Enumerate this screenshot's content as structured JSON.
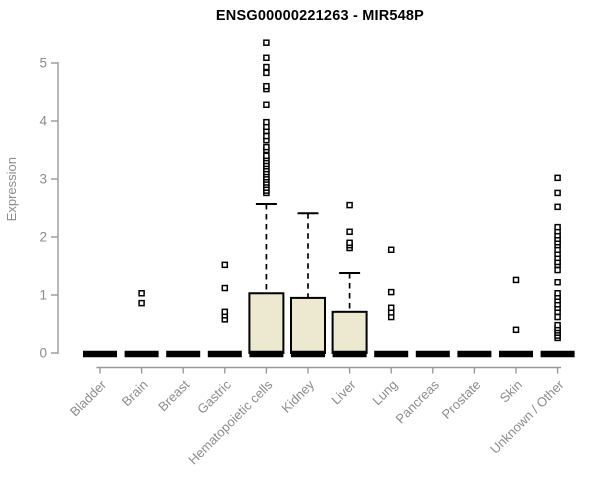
{
  "chart_data": {
    "type": "boxplot",
    "title": "ENSG00000221263 - MIR548P",
    "ylabel": "Expression",
    "xlabel": "",
    "ylim": [
      0,
      5.4
    ],
    "yticks": [
      0,
      1,
      2,
      3,
      4,
      5
    ],
    "grid": false,
    "legend": "none",
    "categories": [
      "Bladder",
      "Brain",
      "Breast",
      "Gastric",
      "Hematopoietic cells",
      "Kidney",
      "Liver",
      "Lung",
      "Pancreas",
      "Prostate",
      "Skin",
      "Unknown / Other"
    ],
    "boxes": [
      {
        "category": "Bladder",
        "q1": 0,
        "median": 0,
        "q3": 0,
        "whisker_low": 0,
        "whisker_high": 0,
        "outliers": []
      },
      {
        "category": "Brain",
        "q1": 0,
        "median": 0,
        "q3": 0,
        "whisker_low": 0,
        "whisker_high": 0,
        "outliers": [
          0.86,
          1.03
        ]
      },
      {
        "category": "Breast",
        "q1": 0,
        "median": 0,
        "q3": 0,
        "whisker_low": 0,
        "whisker_high": 0,
        "outliers": []
      },
      {
        "category": "Gastric",
        "q1": 0,
        "median": 0,
        "q3": 0,
        "whisker_low": 0,
        "whisker_high": 0,
        "outliers": [
          0.58,
          0.65,
          0.71,
          1.12,
          1.52
        ]
      },
      {
        "category": "Hematopoietic cells",
        "q1": 0,
        "median": 0,
        "q3": 1.03,
        "whisker_low": 0,
        "whisker_high": 2.57,
        "outliers": [
          2.76,
          2.8,
          2.85,
          2.9,
          2.94,
          2.99,
          3.03,
          3.08,
          3.12,
          3.17,
          3.22,
          3.26,
          3.31,
          3.36,
          3.4,
          3.5,
          3.55,
          3.67,
          3.74,
          3.83,
          3.9,
          3.98,
          4.28,
          4.55,
          4.6,
          4.83,
          4.93,
          5.09,
          5.35
        ]
      },
      {
        "category": "Kidney",
        "q1": 0,
        "median": 0,
        "q3": 0.95,
        "whisker_low": 0,
        "whisker_high": 2.41,
        "outliers": []
      },
      {
        "category": "Liver",
        "q1": 0,
        "median": 0,
        "q3": 0.71,
        "whisker_low": 0,
        "whisker_high": 1.38,
        "outliers": [
          1.81,
          1.86,
          1.9,
          2.09,
          2.55
        ]
      },
      {
        "category": "Lung",
        "q1": 0,
        "median": 0,
        "q3": 0,
        "whisker_low": 0,
        "whisker_high": 0,
        "outliers": [
          0.62,
          0.7,
          0.78,
          1.05,
          1.78
        ]
      },
      {
        "category": "Pancreas",
        "q1": 0,
        "median": 0,
        "q3": 0,
        "whisker_low": 0,
        "whisker_high": 0,
        "outliers": []
      },
      {
        "category": "Prostate",
        "q1": 0,
        "median": 0,
        "q3": 0,
        "whisker_low": 0,
        "whisker_high": 0,
        "outliers": []
      },
      {
        "category": "Skin",
        "q1": 0,
        "median": 0,
        "q3": 0,
        "whisker_low": 0,
        "whisker_high": 0,
        "outliers": [
          0.4,
          1.26
        ]
      },
      {
        "category": "Unknown / Other",
        "q1": 0,
        "median": 0,
        "q3": 0,
        "whisker_low": 0,
        "whisker_high": 0,
        "outliers": [
          0.26,
          0.3,
          0.35,
          0.39,
          0.43,
          0.48,
          0.62,
          0.71,
          0.78,
          0.84,
          0.91,
          0.97,
          1.03,
          1.22,
          1.43,
          1.52,
          1.57,
          1.64,
          1.71,
          1.78,
          1.86,
          1.91,
          1.97,
          2.03,
          2.1,
          2.17,
          2.52,
          2.76,
          3.02
        ]
      }
    ]
  },
  "colors": {
    "box_fill": "#ede8d0",
    "box_stroke": "#000000",
    "median": "#000000",
    "whisker": "#000000",
    "outlier_stroke": "#000000",
    "outlier_fill": "#ffffff",
    "axis": "#9a9a9a",
    "tick_label": "#8c8c8c",
    "title": "#000000",
    "background": "#ffffff"
  }
}
